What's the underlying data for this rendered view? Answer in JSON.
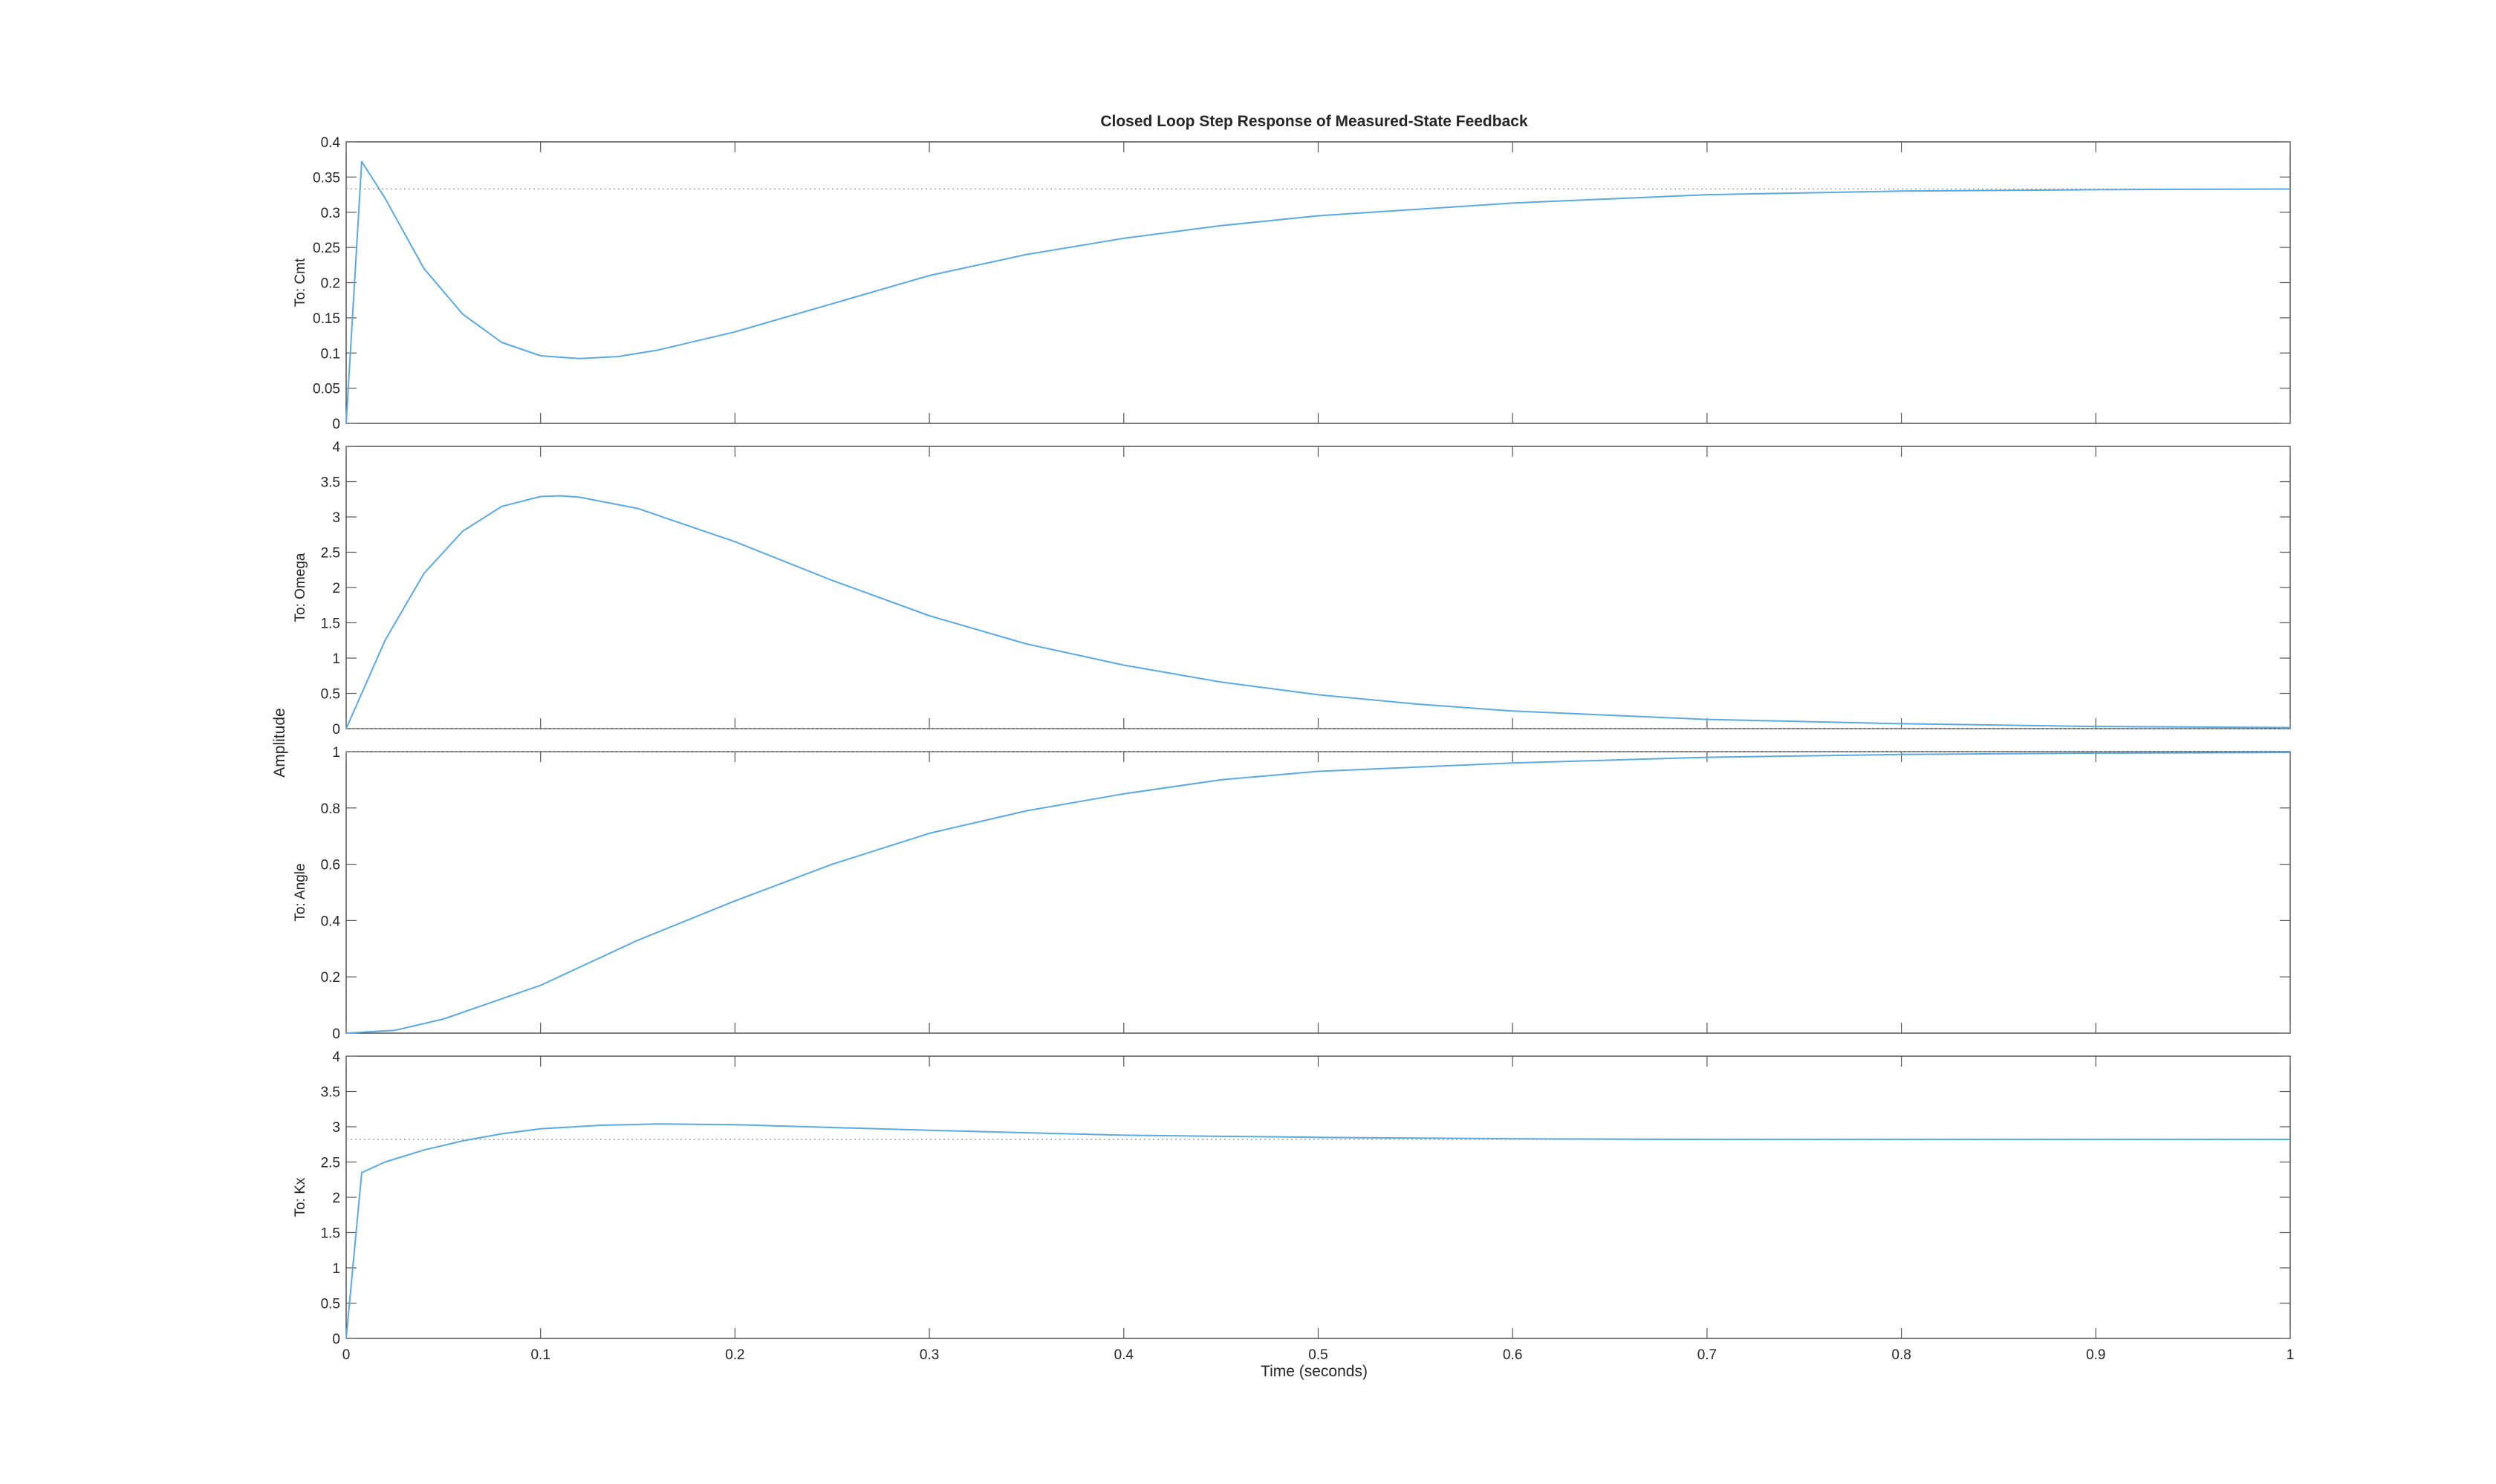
{
  "figure": {
    "title": "Closed Loop Step Response of Measured-State Feedback",
    "xlabel": "Time (seconds)",
    "ylabel": "Amplitude"
  },
  "colors": {
    "response": "#5aa9e2",
    "steady_state": "#9a9a9a",
    "axes": "#262626",
    "ticks": "#555555"
  },
  "chart_data": [
    {
      "type": "line",
      "ylabel": "To: Cmt",
      "xlim": [
        0,
        1
      ],
      "ylim": [
        0,
        0.4
      ],
      "x_ticks": [
        "0",
        "0.1",
        "0.2",
        "0.3",
        "0.4",
        "0.5",
        "0.6",
        "0.7",
        "0.8",
        "0.9",
        "1"
      ],
      "y_ticks": [
        "0",
        "0.05",
        "0.1",
        "0.15",
        "0.2",
        "0.25",
        "0.3",
        "0.35",
        "0.4"
      ],
      "steady_state": 0.333,
      "series": [
        {
          "x": [
            0,
            0.008,
            0.02,
            0.04,
            0.06,
            0.08,
            0.1,
            0.12,
            0.14,
            0.16,
            0.2,
            0.25,
            0.3,
            0.35,
            0.4,
            0.45,
            0.5,
            0.6,
            0.7,
            0.8,
            0.9,
            1.0
          ],
          "y": [
            0,
            0.372,
            0.32,
            0.22,
            0.155,
            0.115,
            0.096,
            0.092,
            0.095,
            0.104,
            0.13,
            0.17,
            0.21,
            0.24,
            0.263,
            0.281,
            0.295,
            0.313,
            0.325,
            0.33,
            0.332,
            0.333
          ]
        }
      ]
    },
    {
      "type": "line",
      "ylabel": "To: Omega",
      "xlim": [
        0,
        1
      ],
      "ylim": [
        0,
        4
      ],
      "x_ticks": [
        "0",
        "0.1",
        "0.2",
        "0.3",
        "0.4",
        "0.5",
        "0.6",
        "0.7",
        "0.8",
        "0.9",
        "1"
      ],
      "y_ticks": [
        "0",
        "0.5",
        "1",
        "1.5",
        "2",
        "2.5",
        "3",
        "3.5",
        "4"
      ],
      "steady_state": 0,
      "series": [
        {
          "x": [
            0,
            0.02,
            0.04,
            0.06,
            0.08,
            0.1,
            0.11,
            0.12,
            0.15,
            0.2,
            0.25,
            0.3,
            0.35,
            0.4,
            0.45,
            0.5,
            0.55,
            0.6,
            0.7,
            0.8,
            0.9,
            1.0
          ],
          "y": [
            0,
            1.25,
            2.2,
            2.8,
            3.15,
            3.29,
            3.3,
            3.28,
            3.12,
            2.65,
            2.1,
            1.6,
            1.2,
            0.9,
            0.66,
            0.48,
            0.35,
            0.25,
            0.13,
            0.07,
            0.03,
            0.015
          ]
        }
      ]
    },
    {
      "type": "line",
      "ylabel": "To: Angle",
      "xlim": [
        0,
        1
      ],
      "ylim": [
        0,
        1
      ],
      "x_ticks": [
        "0",
        "0.1",
        "0.2",
        "0.3",
        "0.4",
        "0.5",
        "0.6",
        "0.7",
        "0.8",
        "0.9",
        "1"
      ],
      "y_ticks": [
        "0",
        "0.2",
        "0.4",
        "0.6",
        "0.8",
        "1"
      ],
      "steady_state": 1,
      "series": [
        {
          "x": [
            0,
            0.025,
            0.05,
            0.1,
            0.15,
            0.2,
            0.25,
            0.3,
            0.35,
            0.4,
            0.45,
            0.5,
            0.6,
            0.7,
            0.8,
            0.9,
            1.0
          ],
          "y": [
            0,
            0.01,
            0.05,
            0.17,
            0.33,
            0.47,
            0.6,
            0.71,
            0.79,
            0.85,
            0.9,
            0.93,
            0.96,
            0.98,
            0.99,
            0.995,
            0.997
          ]
        }
      ]
    },
    {
      "type": "line",
      "ylabel": "To: Kx",
      "xlim": [
        0,
        1
      ],
      "ylim": [
        0,
        4
      ],
      "x_ticks": [
        "0",
        "0.1",
        "0.2",
        "0.3",
        "0.4",
        "0.5",
        "0.6",
        "0.7",
        "0.8",
        "0.9",
        "1"
      ],
      "y_ticks": [
        "0",
        "0.5",
        "1",
        "1.5",
        "2",
        "2.5",
        "3",
        "3.5",
        "4"
      ],
      "steady_state": 2.82,
      "series": [
        {
          "x": [
            0,
            0.008,
            0.02,
            0.04,
            0.06,
            0.08,
            0.1,
            0.13,
            0.16,
            0.2,
            0.25,
            0.3,
            0.4,
            0.5,
            0.6,
            0.7,
            0.8,
            0.9,
            1.0
          ],
          "y": [
            0,
            2.35,
            2.5,
            2.67,
            2.8,
            2.9,
            2.97,
            3.02,
            3.04,
            3.03,
            2.99,
            2.95,
            2.88,
            2.85,
            2.83,
            2.82,
            2.82,
            2.82,
            2.82
          ]
        }
      ]
    }
  ]
}
